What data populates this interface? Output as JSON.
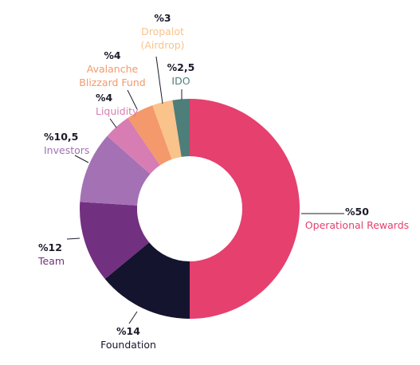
{
  "chart_data": {
    "type": "pie",
    "donut": true,
    "title": "",
    "slices": [
      {
        "pct_label": "%50",
        "lines": [
          "Operational Rewards"
        ],
        "value": 50,
        "color": "#e5406e"
      },
      {
        "pct_label": "%14",
        "lines": [
          "Foundation"
        ],
        "value": 14,
        "color": "#15142e"
      },
      {
        "pct_label": "%12",
        "lines": [
          "Team"
        ],
        "value": 12,
        "color": "#723080"
      },
      {
        "pct_label": "%10,5",
        "lines": [
          "Investors"
        ],
        "value": 10.5,
        "color": "#a371b4"
      },
      {
        "pct_label": "%4",
        "lines": [
          "Liquidity"
        ],
        "value": 4,
        "color": "#d77db3"
      },
      {
        "pct_label": "%4",
        "lines": [
          "Avalanche",
          "Blizzard Fund"
        ],
        "value": 4,
        "color": "#f4996b"
      },
      {
        "pct_label": "%3",
        "lines": [
          "Dropalot",
          "(Airdrop)"
        ],
        "value": 3,
        "color": "#fac38b"
      },
      {
        "pct_label": "%2,5",
        "lines": [
          "IDO"
        ],
        "value": 2.5,
        "color": "#4e7e79"
      }
    ]
  }
}
